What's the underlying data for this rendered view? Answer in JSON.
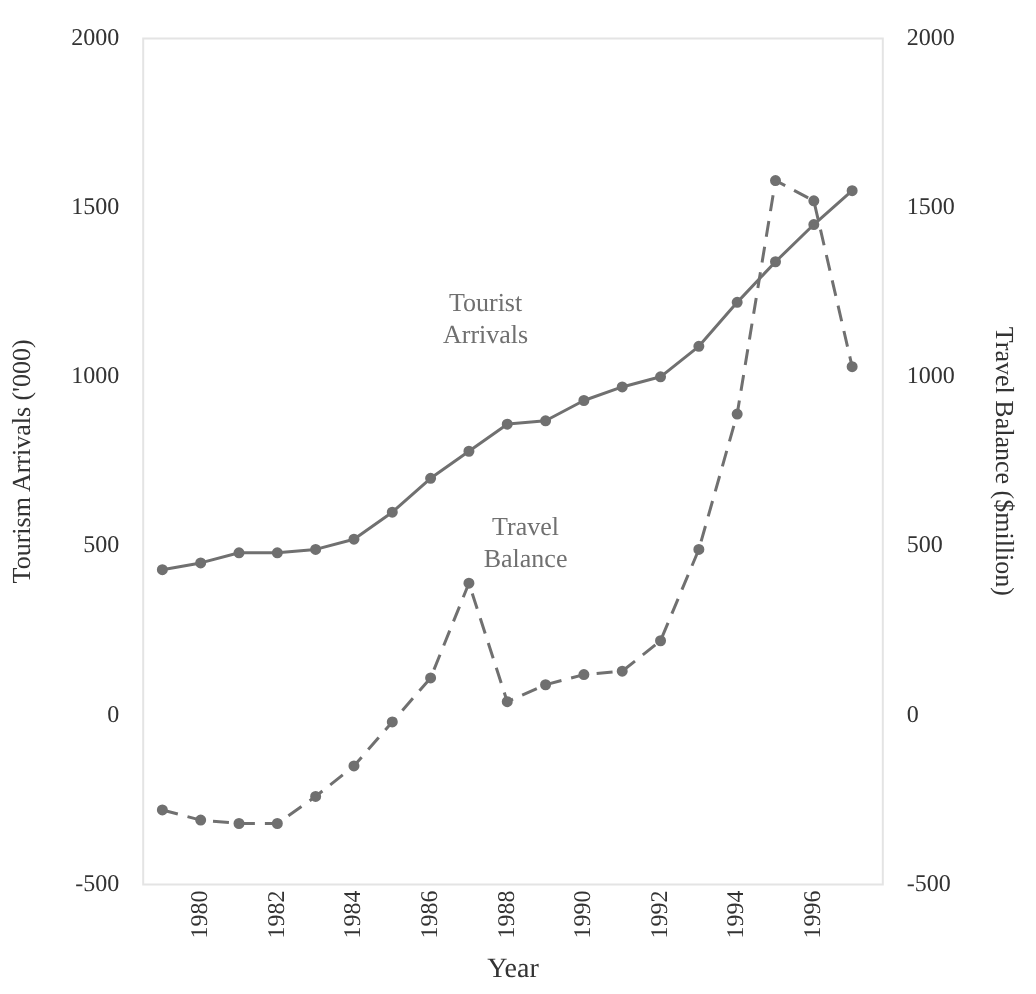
{
  "chart_data": {
    "type": "line",
    "xlabel": "Year",
    "ylabel": "Tourism Arrivals ('000)",
    "y2label": "Travel Balance ($million)",
    "x": [
      1979,
      1980,
      1981,
      1982,
      1983,
      1984,
      1985,
      1986,
      1987,
      1988,
      1989,
      1990,
      1991,
      1992,
      1993,
      1994,
      1995,
      1996,
      1997
    ],
    "series": [
      {
        "name": "Tourist Arrivals",
        "color": "#707070",
        "line_style": "solid",
        "values": [
          430,
          450,
          480,
          480,
          490,
          520,
          600,
          700,
          780,
          860,
          870,
          930,
          970,
          1000,
          1090,
          1220,
          1340,
          1450,
          1550
        ]
      },
      {
        "name": "Travel Balance",
        "color": "#707070",
        "line_style": "dashed",
        "axis": "y2",
        "values": [
          -280,
          -310,
          -320,
          -320,
          -240,
          -150,
          -20,
          110,
          390,
          40,
          90,
          120,
          130,
          220,
          490,
          890,
          1580,
          1520,
          1030
        ]
      }
    ],
    "xlim": [
      1978.5,
      1997.8
    ],
    "xticks": [
      1980,
      1982,
      1984,
      1986,
      1988,
      1990,
      1992,
      1994,
      1996
    ],
    "ylim": [
      -500,
      2000
    ],
    "yticks": [
      -500,
      0,
      500,
      1000,
      1500,
      2000
    ],
    "y2lim": [
      -500,
      2000
    ],
    "y2ticks": [
      -500,
      0,
      500,
      1000,
      1500,
      2000
    ],
    "marker": "circle",
    "grid": false,
    "legend": false
  }
}
